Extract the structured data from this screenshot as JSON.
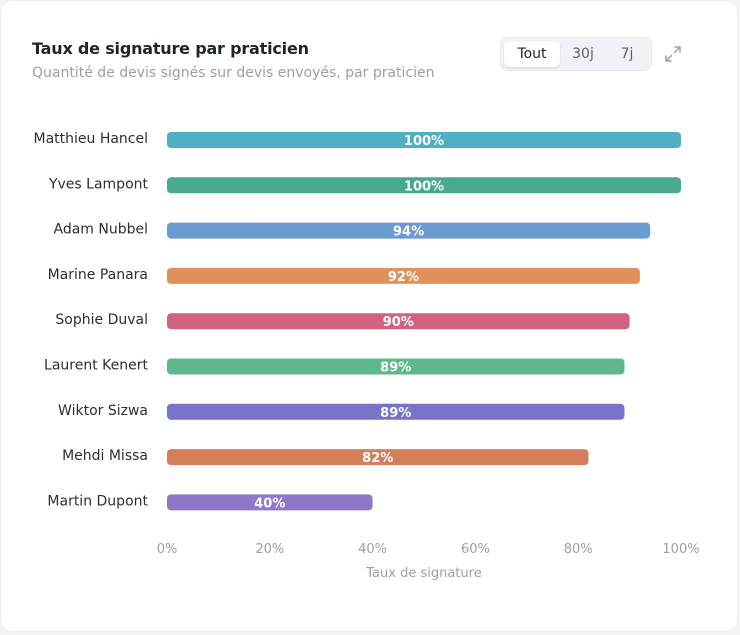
{
  "header": {
    "title": "Taux de signature par praticien",
    "subtitle": "Quantité de devis signés sur devis envoyés, par praticien",
    "periods": [
      "Tout",
      "30j",
      "7j"
    ],
    "active_period": "Tout",
    "expand_icon": "expand-icon"
  },
  "chart_data": {
    "type": "bar",
    "orientation": "horizontal",
    "categories": [
      "Matthieu Hancel",
      "Yves Lampont",
      "Adam Nubbel",
      "Marine Panara",
      "Sophie Duval",
      "Laurent Kenert",
      "Wiktor Sizwa",
      "Mehdi Missa",
      "Martin Dupont"
    ],
    "values": [
      100,
      100,
      94,
      92,
      90,
      89,
      89,
      82,
      40
    ],
    "value_labels": [
      "100%",
      "100%",
      "94%",
      "92%",
      "90%",
      "89%",
      "89%",
      "82%",
      "40%"
    ],
    "colors": [
      "#4cafc4",
      "#4aa891",
      "#6a9bd1",
      "#e0925a",
      "#d06480",
      "#5db98c",
      "#7674c9",
      "#d27f5a",
      "#8e79c9"
    ],
    "xlabel": "Taux de signature",
    "xlim": [
      0,
      100
    ],
    "xticks": [
      0,
      20,
      40,
      60,
      80,
      100
    ],
    "xtick_labels": [
      "0%",
      "20%",
      "40%",
      "60%",
      "80%",
      "100%"
    ],
    "grid": false,
    "legend": "none"
  }
}
